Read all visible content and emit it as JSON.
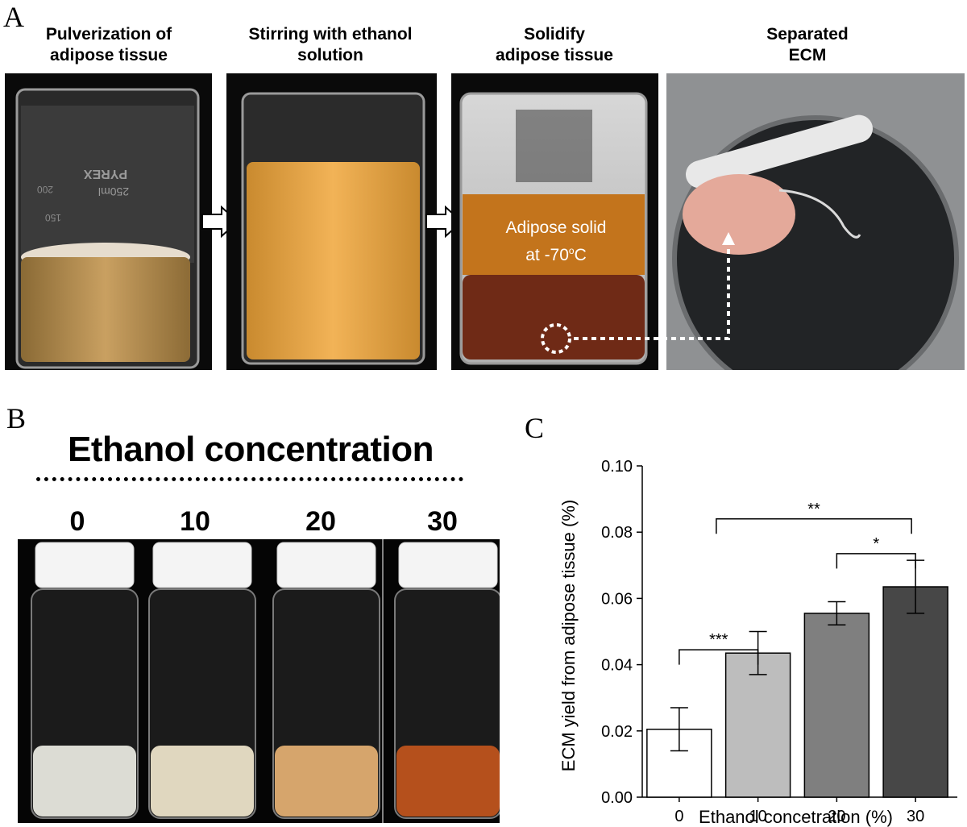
{
  "panels": {
    "A": {
      "letter": "A",
      "steps": [
        {
          "title": "Pulverization of\nadipose tissue"
        },
        {
          "title": "Stirring with ethanol\nsolution"
        },
        {
          "title": "Solidify\nadipose tissue"
        },
        {
          "title": "Separated\nECM"
        }
      ],
      "beaker_text": {
        "line1": "Adipose solid",
        "line2": "at -70",
        "deg": "o",
        "unit": "C"
      },
      "pyrex_label": "PYREX",
      "pyrex_volume": "250ml",
      "graduations": [
        "200",
        "150"
      ]
    },
    "B": {
      "letter": "B",
      "title": "Ethanol concentration",
      "concentrations": [
        "0",
        "10",
        "20",
        "30"
      ],
      "liquid_colors": [
        "#dcdcd4",
        "#e0d7bf",
        "#d6a56c",
        "#b5501c"
      ]
    },
    "C": {
      "letter": "C"
    }
  },
  "chart_data": {
    "type": "bar",
    "categories": [
      "0",
      "10",
      "20",
      "30"
    ],
    "values": [
      0.0205,
      0.0435,
      0.0555,
      0.0635
    ],
    "errors": [
      0.0065,
      0.0065,
      0.0035,
      0.008
    ],
    "bar_colors": [
      "#ffffff",
      "#bdbdbd",
      "#7f7f7f",
      "#474747"
    ],
    "xlabel": "Ethanol concetration (%)",
    "ylabel": "ECM yield from adipose tissue (%)",
    "ylim": [
      0,
      0.1
    ],
    "yticks": [
      "0.00",
      "0.02",
      "0.04",
      "0.06",
      "0.08",
      "0.10"
    ],
    "grid": false,
    "significance": [
      {
        "from": 0,
        "to": 1,
        "label": "***",
        "level": 0.0445
      },
      {
        "from": 2,
        "to": 3,
        "label": "*",
        "level": 0.0735
      },
      {
        "from": 0,
        "to": 3,
        "label": "**",
        "level": 0.084
      }
    ]
  }
}
